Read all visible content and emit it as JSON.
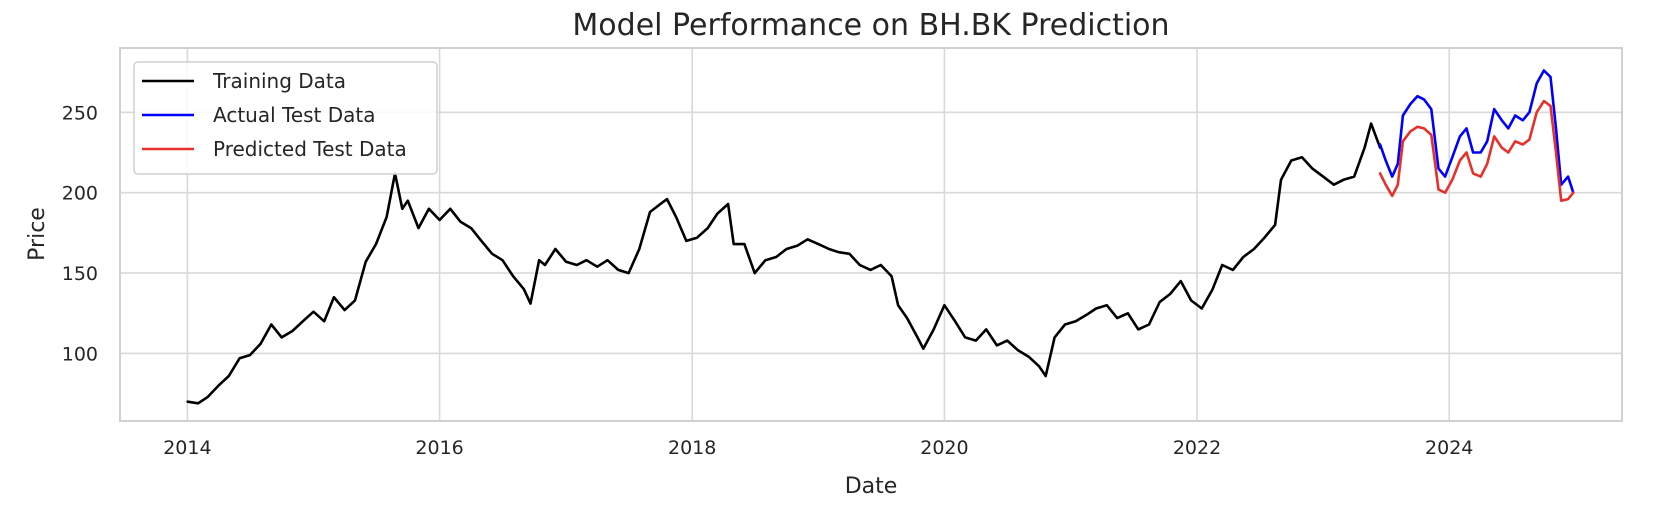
{
  "chart_data": {
    "type": "line",
    "title": "Model Performance on BH.BK Prediction",
    "xlabel": "Date",
    "ylabel": "Price",
    "xlim": [
      "2013-06-20",
      "2025-05-15"
    ],
    "ylim": [
      58,
      290
    ],
    "x_ticks": [
      "2014",
      "2016",
      "2018",
      "2020",
      "2022",
      "2024"
    ],
    "y_ticks": [
      100,
      150,
      200,
      250
    ],
    "grid": true,
    "legend_position": "top-left",
    "series": [
      {
        "name": "Training Data",
        "color": "#000000",
        "points": [
          [
            "2014-01-02",
            70
          ],
          [
            "2014-02-01",
            69
          ],
          [
            "2014-03-01",
            73
          ],
          [
            "2014-04-01",
            80
          ],
          [
            "2014-05-01",
            86
          ],
          [
            "2014-06-01",
            97
          ],
          [
            "2014-07-01",
            99
          ],
          [
            "2014-08-01",
            106
          ],
          [
            "2014-09-01",
            118
          ],
          [
            "2014-10-01",
            110
          ],
          [
            "2014-11-01",
            114
          ],
          [
            "2014-12-01",
            120
          ],
          [
            "2015-01-01",
            126
          ],
          [
            "2015-02-01",
            120
          ],
          [
            "2015-03-01",
            135
          ],
          [
            "2015-04-01",
            127
          ],
          [
            "2015-05-01",
            133
          ],
          [
            "2015-06-01",
            157
          ],
          [
            "2015-07-01",
            168
          ],
          [
            "2015-08-01",
            185
          ],
          [
            "2015-08-25",
            212
          ],
          [
            "2015-09-15",
            190
          ],
          [
            "2015-10-01",
            195
          ],
          [
            "2015-11-01",
            178
          ],
          [
            "2015-12-01",
            190
          ],
          [
            "2016-01-01",
            183
          ],
          [
            "2016-02-01",
            190
          ],
          [
            "2016-03-01",
            182
          ],
          [
            "2016-04-01",
            178
          ],
          [
            "2016-05-01",
            170
          ],
          [
            "2016-06-01",
            162
          ],
          [
            "2016-07-01",
            158
          ],
          [
            "2016-08-01",
            148
          ],
          [
            "2016-09-01",
            140
          ],
          [
            "2016-09-20",
            131
          ],
          [
            "2016-10-15",
            158
          ],
          [
            "2016-11-01",
            155
          ],
          [
            "2016-12-01",
            165
          ],
          [
            "2017-01-01",
            157
          ],
          [
            "2017-02-01",
            155
          ],
          [
            "2017-03-01",
            158
          ],
          [
            "2017-04-01",
            154
          ],
          [
            "2017-05-01",
            158
          ],
          [
            "2017-06-01",
            152
          ],
          [
            "2017-07-01",
            150
          ],
          [
            "2017-08-01",
            165
          ],
          [
            "2017-09-01",
            188
          ],
          [
            "2017-10-01",
            193
          ],
          [
            "2017-10-20",
            196
          ],
          [
            "2017-11-15",
            185
          ],
          [
            "2017-12-15",
            170
          ],
          [
            "2018-01-15",
            172
          ],
          [
            "2018-02-15",
            178
          ],
          [
            "2018-03-15",
            187
          ],
          [
            "2018-04-15",
            193
          ],
          [
            "2018-05-01",
            168
          ],
          [
            "2018-06-01",
            168
          ],
          [
            "2018-07-01",
            150
          ],
          [
            "2018-08-01",
            158
          ],
          [
            "2018-09-01",
            160
          ],
          [
            "2018-10-01",
            165
          ],
          [
            "2018-11-01",
            167
          ],
          [
            "2018-12-01",
            171
          ],
          [
            "2019-01-01",
            168
          ],
          [
            "2019-02-01",
            165
          ],
          [
            "2019-03-01",
            163
          ],
          [
            "2019-04-01",
            162
          ],
          [
            "2019-05-01",
            155
          ],
          [
            "2019-06-01",
            152
          ],
          [
            "2019-07-01",
            155
          ],
          [
            "2019-08-01",
            148
          ],
          [
            "2019-08-20",
            130
          ],
          [
            "2019-09-15",
            122
          ],
          [
            "2019-10-15",
            110
          ],
          [
            "2019-11-01",
            103
          ],
          [
            "2019-12-01",
            115
          ],
          [
            "2020-01-01",
            130
          ],
          [
            "2020-02-01",
            120
          ],
          [
            "2020-03-01",
            110
          ],
          [
            "2020-04-01",
            108
          ],
          [
            "2020-05-01",
            115
          ],
          [
            "2020-06-01",
            105
          ],
          [
            "2020-07-01",
            108
          ],
          [
            "2020-08-01",
            102
          ],
          [
            "2020-09-01",
            98
          ],
          [
            "2020-10-01",
            92
          ],
          [
            "2020-10-20",
            86
          ],
          [
            "2020-11-15",
            110
          ],
          [
            "2020-12-15",
            118
          ],
          [
            "2021-01-15",
            120
          ],
          [
            "2021-02-15",
            124
          ],
          [
            "2021-03-15",
            128
          ],
          [
            "2021-04-15",
            130
          ],
          [
            "2021-05-15",
            122
          ],
          [
            "2021-06-15",
            125
          ],
          [
            "2021-07-15",
            115
          ],
          [
            "2021-08-15",
            118
          ],
          [
            "2021-09-15",
            132
          ],
          [
            "2021-10-15",
            137
          ],
          [
            "2021-11-15",
            145
          ],
          [
            "2021-12-15",
            133
          ],
          [
            "2022-01-15",
            128
          ],
          [
            "2022-02-15",
            140
          ],
          [
            "2022-03-15",
            155
          ],
          [
            "2022-04-15",
            152
          ],
          [
            "2022-05-15",
            160
          ],
          [
            "2022-06-15",
            165
          ],
          [
            "2022-07-15",
            172
          ],
          [
            "2022-08-15",
            180
          ],
          [
            "2022-09-01",
            208
          ],
          [
            "2022-10-01",
            220
          ],
          [
            "2022-11-01",
            222
          ],
          [
            "2022-12-01",
            215
          ],
          [
            "2023-01-01",
            210
          ],
          [
            "2023-02-01",
            205
          ],
          [
            "2023-03-01",
            208
          ],
          [
            "2023-04-01",
            210
          ],
          [
            "2023-05-01",
            228
          ],
          [
            "2023-05-20",
            243
          ],
          [
            "2023-06-15",
            228
          ]
        ]
      },
      {
        "name": "Actual Test Data",
        "color": "#0000ff",
        "points": [
          [
            "2023-06-15",
            230
          ],
          [
            "2023-07-01",
            220
          ],
          [
            "2023-07-20",
            210
          ],
          [
            "2023-08-05",
            218
          ],
          [
            "2023-08-20",
            248
          ],
          [
            "2023-09-10",
            255
          ],
          [
            "2023-10-01",
            260
          ],
          [
            "2023-10-20",
            258
          ],
          [
            "2023-11-10",
            252
          ],
          [
            "2023-12-01",
            215
          ],
          [
            "2023-12-20",
            210
          ],
          [
            "2024-01-10",
            222
          ],
          [
            "2024-02-01",
            235
          ],
          [
            "2024-02-20",
            240
          ],
          [
            "2024-03-10",
            225
          ],
          [
            "2024-04-01",
            225
          ],
          [
            "2024-04-20",
            232
          ],
          [
            "2024-05-10",
            252
          ],
          [
            "2024-06-01",
            245
          ],
          [
            "2024-06-20",
            240
          ],
          [
            "2024-07-10",
            248
          ],
          [
            "2024-08-01",
            245
          ],
          [
            "2024-08-20",
            250
          ],
          [
            "2024-09-10",
            268
          ],
          [
            "2024-10-01",
            276
          ],
          [
            "2024-10-20",
            272
          ],
          [
            "2024-11-05",
            240
          ],
          [
            "2024-11-20",
            205
          ],
          [
            "2024-12-10",
            210
          ],
          [
            "2024-12-25",
            200
          ]
        ]
      },
      {
        "name": "Predicted Test Data",
        "color": "#e8302a",
        "points": [
          [
            "2023-06-15",
            212
          ],
          [
            "2023-07-01",
            205
          ],
          [
            "2023-07-20",
            198
          ],
          [
            "2023-08-05",
            205
          ],
          [
            "2023-08-20",
            232
          ],
          [
            "2023-09-10",
            238
          ],
          [
            "2023-10-01",
            241
          ],
          [
            "2023-10-20",
            240
          ],
          [
            "2023-11-10",
            236
          ],
          [
            "2023-12-01",
            202
          ],
          [
            "2023-12-20",
            200
          ],
          [
            "2024-01-10",
            208
          ],
          [
            "2024-02-01",
            220
          ],
          [
            "2024-02-20",
            225
          ],
          [
            "2024-03-10",
            212
          ],
          [
            "2024-04-01",
            210
          ],
          [
            "2024-04-20",
            218
          ],
          [
            "2024-05-10",
            235
          ],
          [
            "2024-06-01",
            228
          ],
          [
            "2024-06-20",
            225
          ],
          [
            "2024-07-10",
            232
          ],
          [
            "2024-08-01",
            230
          ],
          [
            "2024-08-20",
            233
          ],
          [
            "2024-09-10",
            250
          ],
          [
            "2024-10-01",
            257
          ],
          [
            "2024-10-20",
            254
          ],
          [
            "2024-11-05",
            225
          ],
          [
            "2024-11-20",
            195
          ],
          [
            "2024-12-10",
            196
          ],
          [
            "2024-12-25",
            200
          ]
        ]
      }
    ]
  }
}
